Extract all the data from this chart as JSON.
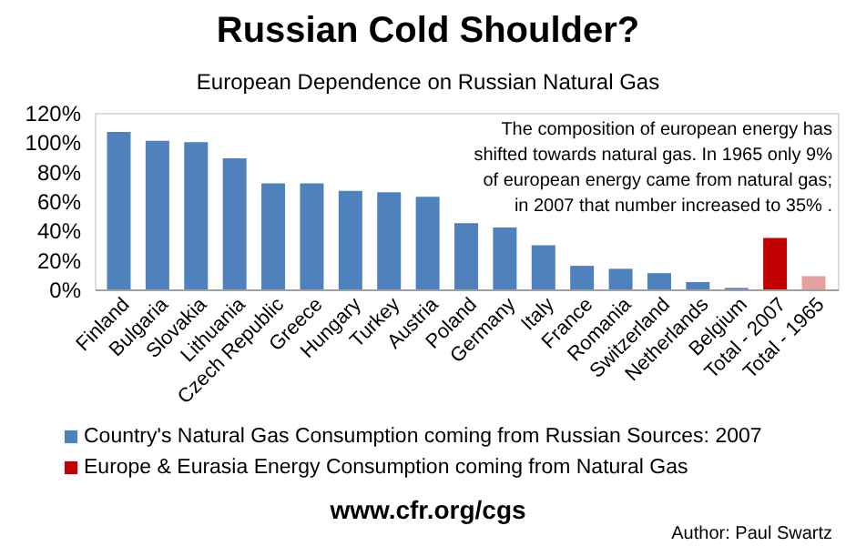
{
  "chart_data": {
    "type": "bar",
    "title": "Russian Cold Shoulder?",
    "subtitle": "European Dependence on Russian Natural Gas",
    "categories": [
      "Finland",
      "Bulgaria",
      "Slovakia",
      "Lithuania",
      "Czech Republic",
      "Greece",
      "Hungary",
      "Turkey",
      "Austria",
      "Poland",
      "Germany",
      "Italy",
      "France",
      "Romania",
      "Switzerland",
      "Netherlands",
      "Belgium",
      "Total - 2007",
      "Total - 1965"
    ],
    "series": [
      {
        "name": "Country's Natural  Gas Consumption  coming from Russian Sources: 2007",
        "color": "#4f81bd",
        "values": [
          107,
          101,
          100,
          89,
          72,
          72,
          67,
          66,
          63,
          45,
          42,
          30,
          16,
          14,
          11,
          5,
          1,
          null,
          null
        ]
      },
      {
        "name": "Europe & Eurasia Energy Consumption  coming from Natural  Gas",
        "color": "#c00000",
        "colors": [
          null,
          null,
          null,
          null,
          null,
          null,
          null,
          null,
          null,
          null,
          null,
          null,
          null,
          null,
          null,
          null,
          null,
          "#c00000",
          "#e6a0a0"
        ],
        "values": [
          null,
          null,
          null,
          null,
          null,
          null,
          null,
          null,
          null,
          null,
          null,
          null,
          null,
          null,
          null,
          null,
          null,
          35,
          9
        ]
      }
    ],
    "ylim": [
      0,
      120
    ],
    "yticks": [
      {
        "value": 0,
        "label": "0%"
      },
      {
        "value": 20,
        "label": "20%"
      },
      {
        "value": 40,
        "label": "40%"
      },
      {
        "value": 60,
        "label": "60%"
      },
      {
        "value": 80,
        "label": "80%"
      },
      {
        "value": 100,
        "label": "100%"
      },
      {
        "value": 120,
        "label": "120%"
      }
    ],
    "grid": false,
    "legend": "bottom",
    "annotations": [
      "The composition of european energy has\nshifted towards natural gas.  In 1965 only 9%\nof european energy came from natural gas;\nin 2007 that number increased to 35% .",
      "www.cfr.org/cgs",
      "Author: Paul Swartz"
    ]
  }
}
